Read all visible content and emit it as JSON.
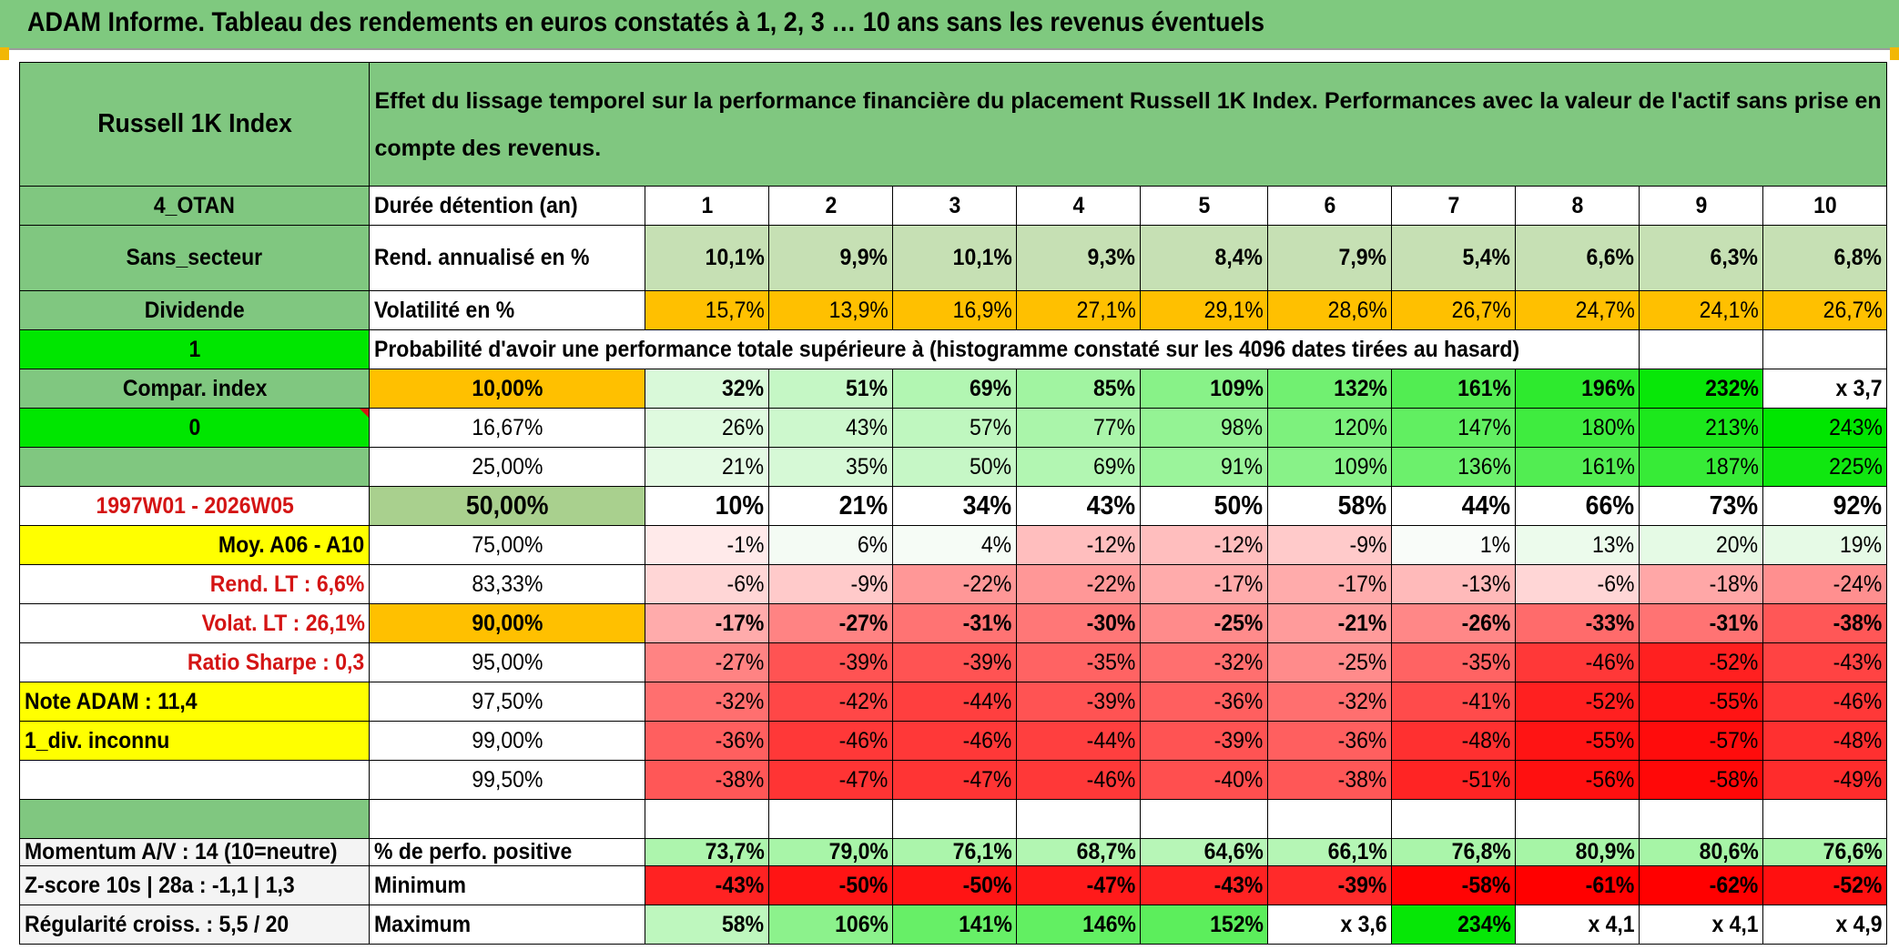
{
  "title": "ADAM Informe. Tableau des rendements en euros constatés à 1, 2, 3 … 10 ans sans les revenus éventuels",
  "header": {
    "asset": "Russell 1K Index",
    "description": "Effet du lissage temporel sur la performance financière du placement Russell 1K Index. Performances avec la valeur de l'actif sans prise en compte des revenus."
  },
  "colors": {
    "title_green": "#7fc97f",
    "label_green": "#80c780",
    "bright_green": "#00e600",
    "orange": "#ffc000",
    "yellow": "#ffff00",
    "red_text": "#d41414"
  },
  "sidebar": [
    {
      "text": "4_OTAN"
    },
    {
      "text": "Sans_secteur"
    },
    {
      "text": "Dividende"
    },
    {
      "text": "1"
    },
    {
      "text": "Compar. index"
    },
    {
      "text": "0"
    },
    {
      "text": ""
    },
    {
      "text": "1997W01 - 2026W05"
    },
    {
      "text": "Moy. A06 - A10"
    },
    {
      "text": "Rend. LT :   6,6%"
    },
    {
      "text": "Volat. LT :   26,1%"
    },
    {
      "text": "Ratio Sharpe :   0,3"
    },
    {
      "text": "Note ADAM : 11,4"
    },
    {
      "text": "1_div. inconnu"
    },
    {
      "text": ""
    },
    {
      "text": ""
    },
    {
      "text": "Momentum A/V : 14 (10=neutre)"
    },
    {
      "text": "Z-score 10s | 28a : -1,1 | 1,3"
    },
    {
      "text": "Régularité croiss. : 5,5 / 20"
    }
  ],
  "stats": {
    "duration_label": "Durée détention (an)",
    "years": [
      "1",
      "2",
      "3",
      "4",
      "5",
      "6",
      "7",
      "8",
      "9",
      "10"
    ],
    "return_label": "Rend. annualisé en %",
    "returns": [
      "10,1%",
      "9,9%",
      "10,1%",
      "9,3%",
      "8,4%",
      "7,9%",
      "5,4%",
      "6,6%",
      "6,3%",
      "6,8%"
    ],
    "volatility_label": "Volatilité en %",
    "volatility": [
      "15,7%",
      "13,9%",
      "16,9%",
      "27,1%",
      "29,1%",
      "28,6%",
      "26,7%",
      "24,7%",
      "24,1%",
      "26,7%"
    ]
  },
  "probability_caption": "Probabilité d'avoir une performance totale supérieure à (histogramme constaté sur les 4096 dates tirées au hasard)",
  "probability_rows": [
    {
      "level": "10,00%",
      "values": [
        "32%",
        "51%",
        "69%",
        "85%",
        "109%",
        "132%",
        "161%",
        "196%",
        "232%",
        "x 3,7"
      ]
    },
    {
      "level": "16,67%",
      "values": [
        "26%",
        "43%",
        "57%",
        "77%",
        "98%",
        "120%",
        "147%",
        "180%",
        "213%",
        "243%"
      ]
    },
    {
      "level": "25,00%",
      "values": [
        "21%",
        "35%",
        "50%",
        "69%",
        "91%",
        "109%",
        "136%",
        "161%",
        "187%",
        "225%"
      ]
    },
    {
      "level": "50,00%",
      "values": [
        "10%",
        "21%",
        "34%",
        "43%",
        "50%",
        "58%",
        "44%",
        "66%",
        "73%",
        "92%"
      ]
    },
    {
      "level": "75,00%",
      "values": [
        "-1%",
        "6%",
        "4%",
        "-12%",
        "-12%",
        "-9%",
        "1%",
        "13%",
        "20%",
        "19%"
      ]
    },
    {
      "level": "83,33%",
      "values": [
        "-6%",
        "-9%",
        "-22%",
        "-22%",
        "-17%",
        "-17%",
        "-13%",
        "-6%",
        "-18%",
        "-24%"
      ]
    },
    {
      "level": "90,00%",
      "values": [
        "-17%",
        "-27%",
        "-31%",
        "-30%",
        "-25%",
        "-21%",
        "-26%",
        "-33%",
        "-31%",
        "-38%"
      ]
    },
    {
      "level": "95,00%",
      "values": [
        "-27%",
        "-39%",
        "-39%",
        "-35%",
        "-32%",
        "-25%",
        "-35%",
        "-46%",
        "-52%",
        "-43%"
      ]
    },
    {
      "level": "97,50%",
      "values": [
        "-32%",
        "-42%",
        "-44%",
        "-39%",
        "-36%",
        "-32%",
        "-41%",
        "-52%",
        "-55%",
        "-46%"
      ]
    },
    {
      "level": "99,00%",
      "values": [
        "-36%",
        "-46%",
        "-46%",
        "-44%",
        "-39%",
        "-36%",
        "-48%",
        "-55%",
        "-57%",
        "-48%"
      ]
    },
    {
      "level": "99,50%",
      "values": [
        "-38%",
        "-47%",
        "-47%",
        "-46%",
        "-40%",
        "-38%",
        "-51%",
        "-56%",
        "-58%",
        "-49%"
      ]
    }
  ],
  "summary_rows": [
    {
      "label": "% de perfo. positive",
      "values": [
        "73,7%",
        "79,0%",
        "76,1%",
        "68,7%",
        "64,6%",
        "66,1%",
        "76,8%",
        "80,9%",
        "80,6%",
        "76,6%"
      ]
    },
    {
      "label": "Minimum",
      "values": [
        "-43%",
        "-50%",
        "-50%",
        "-47%",
        "-43%",
        "-39%",
        "-58%",
        "-61%",
        "-62%",
        "-52%"
      ]
    },
    {
      "label": "Maximum",
      "values": [
        "58%",
        "106%",
        "141%",
        "146%",
        "152%",
        "x 3,6",
        "234%",
        "x 4,1",
        "x 4,1",
        "x 4,9"
      ]
    }
  ]
}
